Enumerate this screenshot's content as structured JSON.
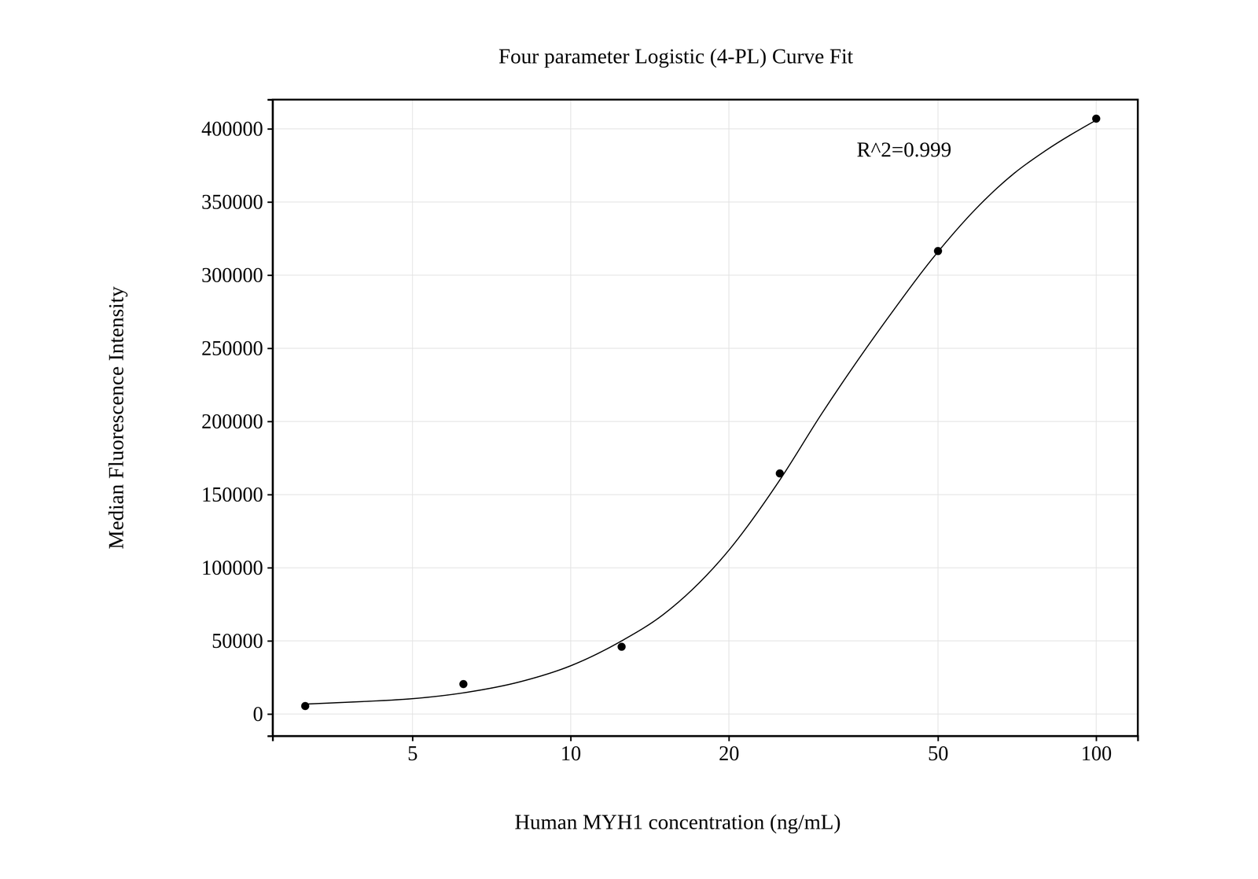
{
  "chart_data": {
    "type": "scatter",
    "title": "Four parameter Logistic (4-PL) Curve Fit",
    "x_label": "Human MYH1 concentration (ng/mL)",
    "y_label": "Median Fluorescence Intensity",
    "annotation": "R^2=0.999",
    "log": "x",
    "grid": true,
    "xlim": [
      2.71,
      120
    ],
    "xticks": [
      5,
      10,
      20,
      50,
      100
    ],
    "ylim": [
      -15000,
      420000
    ],
    "yticks": [
      0,
      50000,
      100000,
      150000,
      200000,
      250000,
      300000,
      350000,
      400000
    ],
    "series": [
      {
        "type": "scatter",
        "color": "#000000",
        "marker": "circle",
        "x": [
          3.125,
          6.25,
          12.5,
          25,
          50,
          100
        ],
        "values": [
          5500,
          20500,
          46000,
          164500,
          316500,
          407000
        ]
      },
      {
        "type": "line",
        "color": "#000000",
        "line_style": "solid",
        "x": [
          3.125,
          4,
          5,
          6.25,
          8,
          10,
          12.5,
          15,
          20,
          25,
          30,
          40,
          50,
          60,
          70,
          80,
          100
        ],
        "values": [
          6800,
          8500,
          10500,
          14500,
          22000,
          33000,
          50000,
          68000,
          112000,
          160000,
          205000,
          270000,
          316000,
          348000,
          370000,
          385000,
          406000
        ]
      }
    ]
  }
}
